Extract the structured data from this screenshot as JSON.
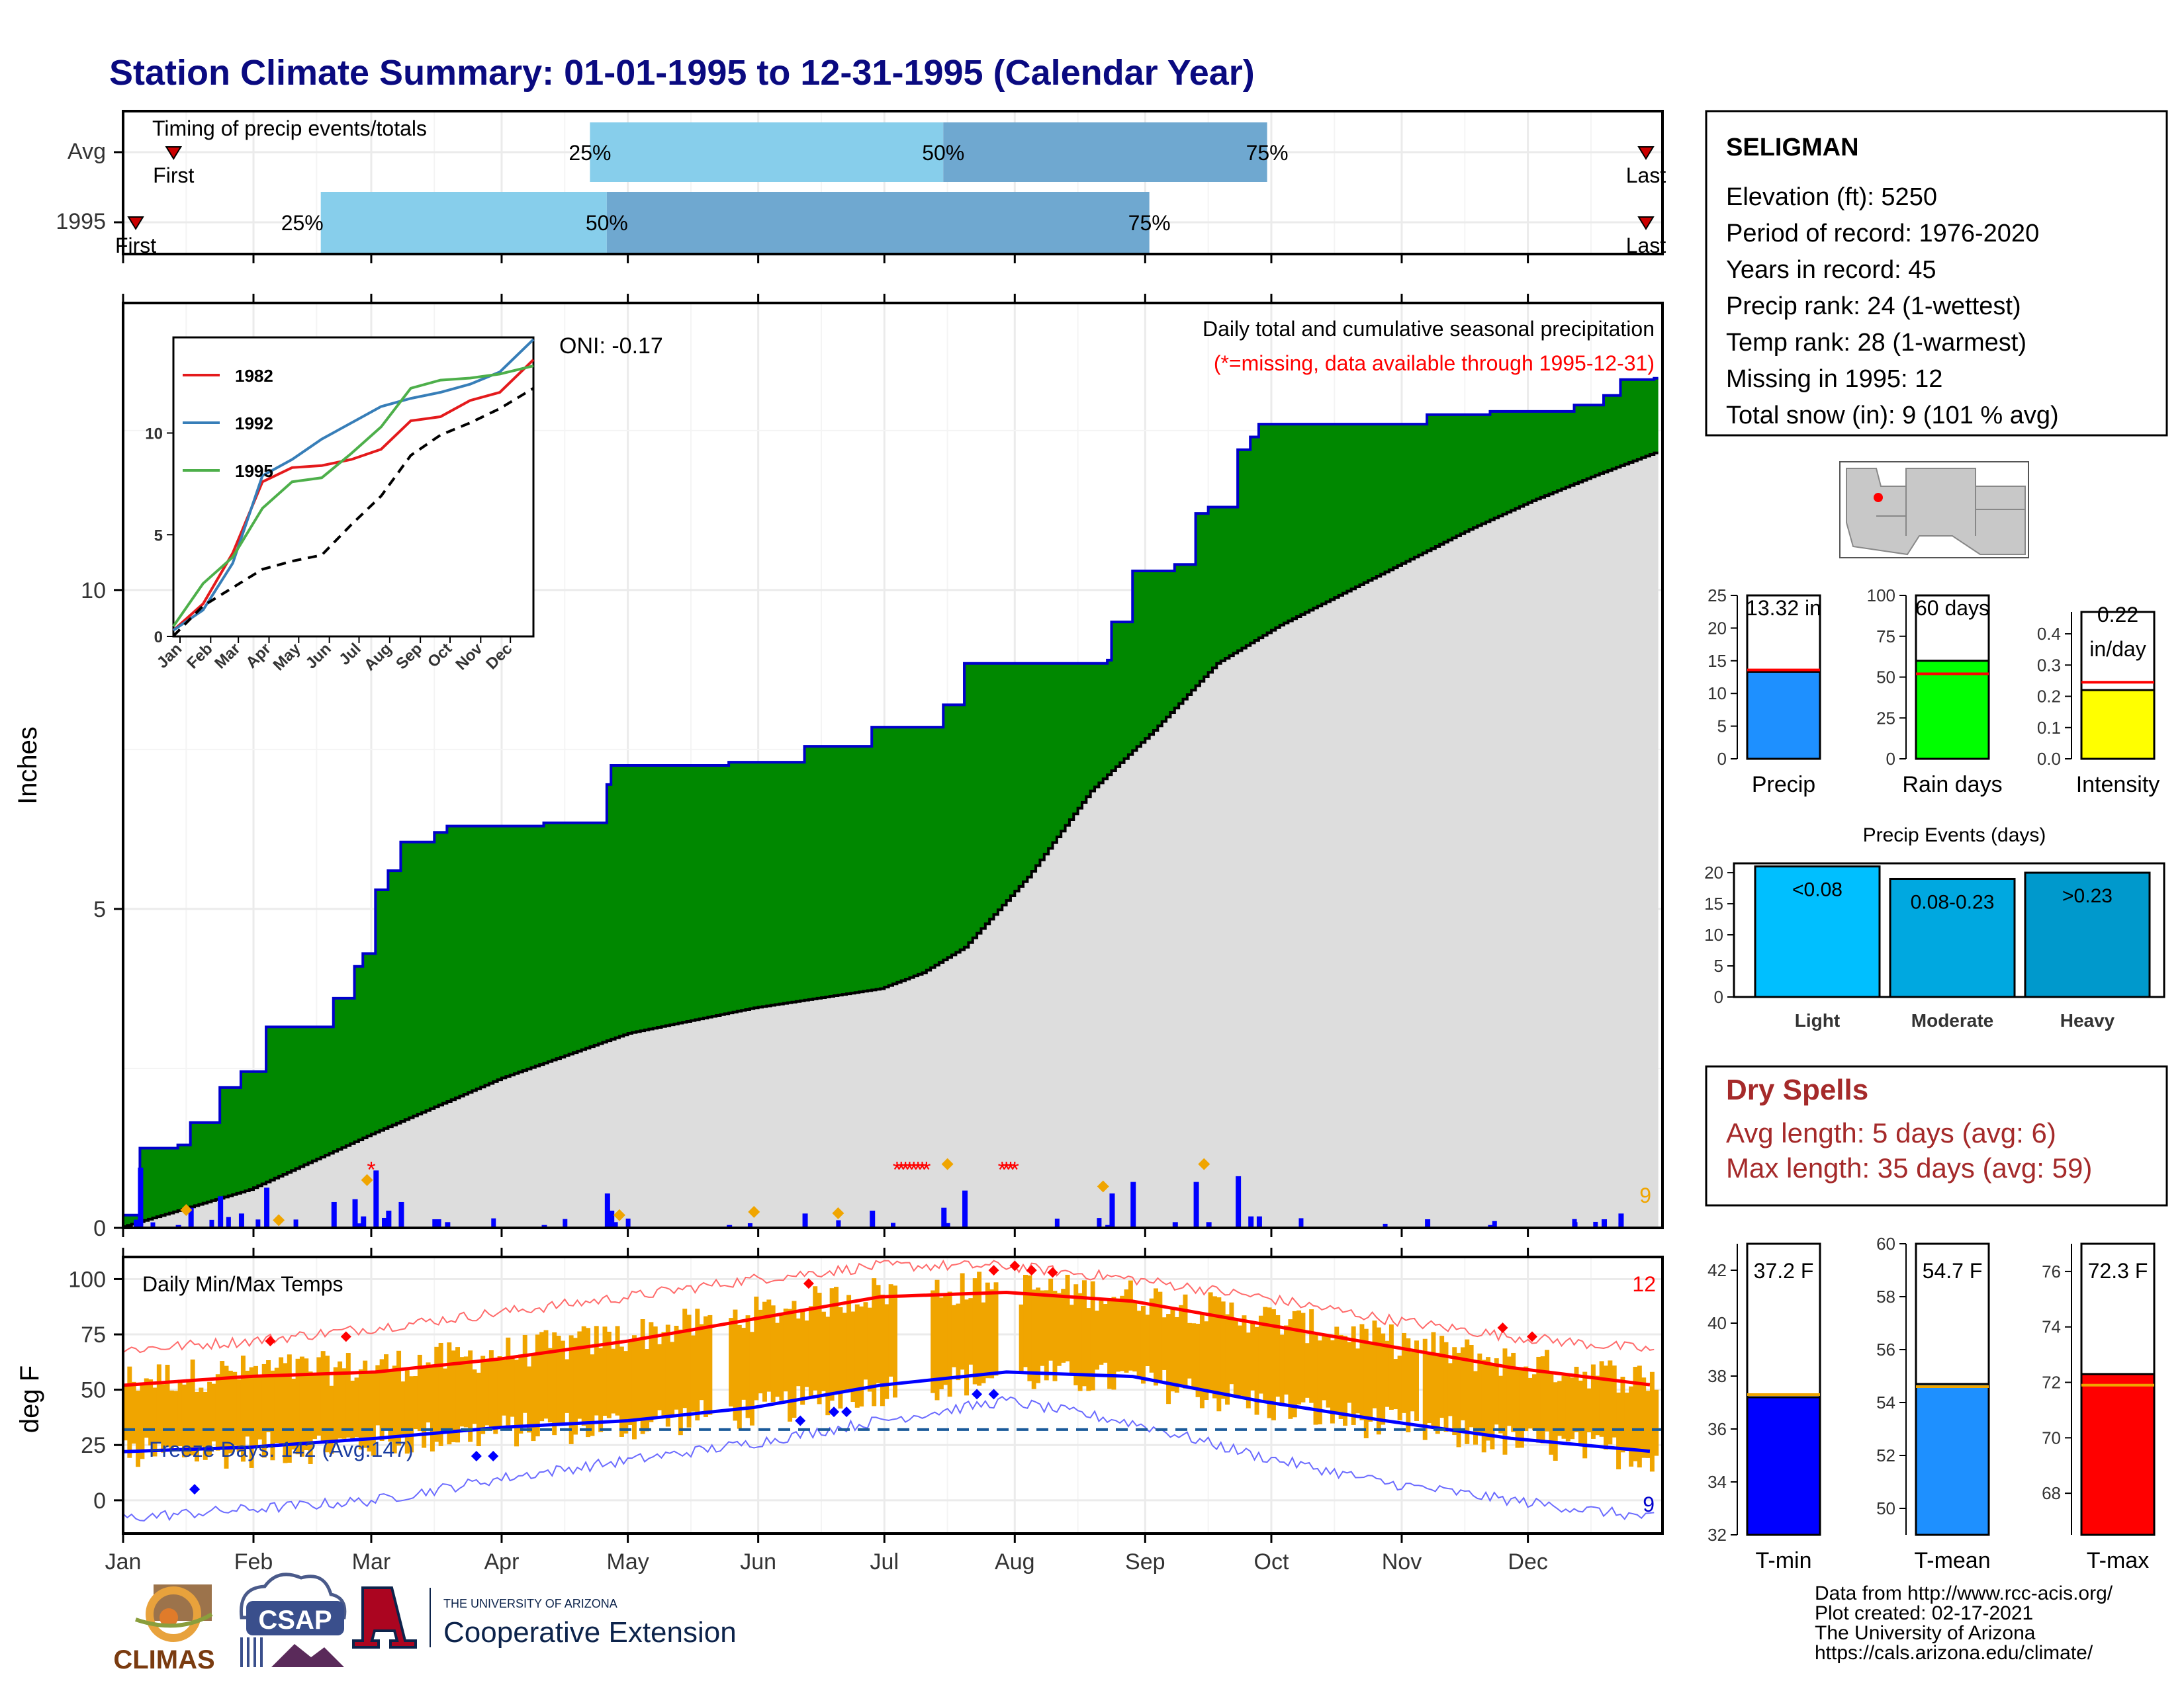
{
  "title": "Station Climate Summary: 01-01-1995 to 12-31-1995 (Calendar Year)",
  "colors": {
    "title": "#0a0a80",
    "green": "#008800",
    "avg_fill": "#dddddd",
    "bar_blue": "#0000ff",
    "orange": "#f0a500",
    "red": "#ff0000",
    "blue": "#0000ff",
    "precip_bar": "#1e90ff",
    "rain_bar": "#00ff00",
    "intensity_bar": "#ffff00",
    "light": "#00bfff",
    "moderate": "#00a8e0",
    "heavy": "#0099cc",
    "dry_spell": "#a52a2a",
    "timing_light": "#87ceeb",
    "timing_dark": "#6fa8d0"
  },
  "timing": {
    "label": "Timing of precip events/totals",
    "rows": [
      {
        "row": "Avg",
        "first": "First",
        "last": "Last",
        "first_day": 12,
        "p25_day": 111,
        "p50_day": 195,
        "p75_day": 272,
        "last_day": 365,
        "p25": "25%",
        "p50": "50%",
        "p75": "75%"
      },
      {
        "row": "1995",
        "first": "First",
        "last": "Last",
        "first_day": 3,
        "p25_day": 47,
        "p50_day": 115,
        "p75_day": 244,
        "last_day": 373,
        "p25": "25%",
        "p50": "50%",
        "p75": "75%"
      }
    ]
  },
  "months": [
    "Jan",
    "Feb",
    "Mar",
    "Apr",
    "May",
    "Jun",
    "Jul",
    "Aug",
    "Sep",
    "Oct",
    "Nov",
    "Dec"
  ],
  "precip": {
    "ylabel": "Inches",
    "yticks": [
      "0",
      "5",
      "10"
    ],
    "ylim": [
      0,
      14.5
    ],
    "oni": "ONI: -0.17",
    "header": "Daily total and cumulative seasonal precipitation",
    "missing_note": "(*=missing, data available through 1995-12-31)",
    "snow_count": "9",
    "missing_marker": "*"
  },
  "inset": {
    "yticks": [
      "0",
      "5",
      "10"
    ],
    "xticks": [
      "Jan",
      "Feb",
      "Mar",
      "Apr",
      "May",
      "Jun",
      "Jul",
      "Aug",
      "Sep",
      "Oct",
      "Nov",
      "Dec"
    ],
    "legend": [
      "1982",
      "1992",
      "1995"
    ],
    "legend_colors": [
      "#e41a1c",
      "#377eb8",
      "#4daf4a"
    ]
  },
  "temps": {
    "ylabel": "deg F",
    "title": "Daily Min/Max Temps",
    "yticks": [
      "0",
      "25",
      "50",
      "75",
      "100"
    ],
    "ylim": [
      -15,
      110
    ],
    "freeze_label": "Freeze Days: 142 (Avg:147)",
    "hot_count": "12",
    "cold_count": "9"
  },
  "station": {
    "name": "SELIGMAN",
    "lines": [
      "Elevation (ft): 5250",
      "Period of record: 1976-2020",
      "Years in record: 45",
      "Precip rank: 24 (1-wettest)",
      "Temp rank: 28 (1-warmest)",
      "Missing in 1995: 12",
      "Total snow (in): 9 (101 % avg)"
    ]
  },
  "small_bars": [
    {
      "label": "Precip",
      "value_label": "13.32 in",
      "value": 13.32,
      "avg": 13.6,
      "ylim": [
        0,
        25
      ],
      "yticks": [
        "0",
        "5",
        "10",
        "15",
        "20",
        "25"
      ]
    },
    {
      "label": "Rain days",
      "value_label": "60 days",
      "value": 60,
      "avg": 52,
      "ylim": [
        0,
        100
      ],
      "yticks": [
        "0",
        "25",
        "50",
        "75",
        "100"
      ]
    },
    {
      "label": "Intensity",
      "value_label_1": "0.22",
      "value_label_2": "in/day",
      "value": 0.22,
      "avg": 0.245,
      "ylim": [
        0,
        0.47
      ],
      "yticks": [
        "0.0",
        "0.1",
        "0.2",
        "0.3",
        "0.4"
      ]
    }
  ],
  "events": {
    "title": "Precip Events (days)",
    "yticks": [
      "0",
      "5",
      "10",
      "15",
      "20"
    ],
    "ylim": [
      0,
      21.5
    ],
    "bars": [
      {
        "label": "Light",
        "value_label": "<0.08",
        "value": 21
      },
      {
        "label": "Moderate",
        "value_label": "0.08-0.23",
        "value": 19
      },
      {
        "label": "Heavy",
        "value_label": ">0.23",
        "value": 20
      }
    ]
  },
  "dry_spells": {
    "title": "Dry Spells",
    "avg": "Avg length: 5 days (avg: 6)",
    "max": "Max length: 35 days (avg: 59)"
  },
  "temp_bars": [
    {
      "label": "T-min",
      "value_label": "37.2 F",
      "value": 37.2,
      "avg": 37.3,
      "ylim": [
        32,
        43
      ],
      "yticks": [
        "32",
        "34",
        "36",
        "38",
        "40",
        "42"
      ]
    },
    {
      "label": "T-mean",
      "value_label": "54.7 F",
      "value": 54.7,
      "avg": 54.6,
      "ylim": [
        49,
        60
      ],
      "yticks": [
        "50",
        "52",
        "54",
        "56",
        "58",
        "60"
      ]
    },
    {
      "label": "T-max",
      "value_label": "72.3 F",
      "value": 72.3,
      "avg": 71.9,
      "ylim": [
        66.5,
        77
      ],
      "yticks": [
        "68",
        "70",
        "72",
        "74",
        "76"
      ]
    }
  ],
  "footer": {
    "lines": [
      "Data from http://www.rcc-acis.org/",
      "Plot created: 02-17-2021",
      "The University of Arizona",
      "https://cals.arizona.edu/climate/"
    ],
    "climas": "CLIMAS",
    "csap": "CSAP",
    "ua_top": "THE UNIVERSITY OF ARIZONA",
    "ua_bottom": "Cooperative Extension"
  },
  "chart_data": [
    {
      "type": "area",
      "title": "Daily total and cumulative seasonal precipitation",
      "ylabel": "Inches",
      "ylim": [
        0,
        14.5
      ],
      "series": [
        {
          "name": "1995",
          "x": [
            0,
            4,
            13,
            16,
            23,
            28,
            34,
            43,
            50,
            55,
            57,
            60,
            63,
            66,
            74,
            77,
            80,
            83,
            87,
            100,
            115,
            116,
            144,
            162,
            177,
            178,
            180,
            195,
            200,
            234,
            235,
            240,
            250,
            255,
            258,
            265,
            268,
            270,
            284,
            298,
            310,
            313,
            325,
            345,
            352,
            356,
            364
          ],
          "values": [
            0.2,
            1.25,
            1.3,
            1.65,
            2.2,
            2.45,
            3.15,
            3.15,
            3.6,
            4.1,
            4.3,
            5.3,
            5.6,
            6.05,
            6.2,
            6.3,
            6.3,
            6.3,
            6.3,
            6.35,
            6.95,
            7.25,
            7.3,
            7.55,
            7.55,
            7.85,
            7.85,
            8.2,
            8.85,
            8.9,
            9.5,
            10.3,
            10.4,
            11.2,
            11.3,
            12.2,
            12.4,
            12.6,
            12.6,
            12.6,
            12.75,
            12.75,
            12.8,
            12.9,
            13.05,
            13.3,
            13.32
          ]
        },
        {
          "name": "Average",
          "x": [
            0,
            30,
            60,
            90,
            120,
            150,
            180,
            190,
            200,
            215,
            230,
            245,
            260,
            275,
            290,
            305,
            320,
            335,
            350,
            364
          ],
          "values": [
            0.02,
            0.6,
            1.5,
            2.35,
            3.05,
            3.45,
            3.75,
            4.0,
            4.4,
            5.5,
            6.85,
            7.8,
            8.85,
            9.45,
            9.95,
            10.45,
            10.95,
            11.4,
            11.8,
            12.15
          ]
        }
      ]
    },
    {
      "type": "line",
      "title": "inset cumulative precipitation",
      "ylim": [
        0,
        14.5
      ],
      "series": [
        {
          "name": "1982",
          "x": [
            0,
            30,
            60,
            90,
            120,
            150,
            180,
            210,
            240,
            270,
            300,
            330,
            364
          ],
          "values": [
            0.3,
            1.6,
            4.1,
            7.6,
            8.3,
            8.4,
            8.7,
            9.2,
            10.6,
            10.8,
            11.6,
            12.0,
            13.6
          ]
        },
        {
          "name": "1992",
          "x": [
            0,
            30,
            60,
            90,
            120,
            150,
            180,
            210,
            240,
            270,
            300,
            330,
            364
          ],
          "values": [
            0.3,
            1.3,
            3.6,
            7.9,
            8.7,
            9.7,
            10.5,
            11.3,
            11.7,
            12.0,
            12.4,
            13.0,
            14.6
          ]
        },
        {
          "name": "1995",
          "x": [
            0,
            30,
            60,
            90,
            120,
            150,
            180,
            210,
            240,
            270,
            300,
            330,
            364
          ],
          "values": [
            0.5,
            2.6,
            3.9,
            6.3,
            7.6,
            7.8,
            9.0,
            10.3,
            12.2,
            12.6,
            12.7,
            12.9,
            13.3
          ]
        },
        {
          "name": "Average",
          "x": [
            0,
            30,
            60,
            90,
            120,
            150,
            180,
            210,
            240,
            270,
            300,
            330,
            364
          ],
          "values": [
            0.02,
            1.5,
            2.4,
            3.3,
            3.7,
            4.0,
            5.5,
            6.9,
            8.9,
            9.9,
            10.5,
            11.2,
            12.2
          ]
        }
      ]
    },
    {
      "type": "line",
      "title": "Daily Min/Max Temps",
      "ylabel": "deg F",
      "ylim": [
        -15,
        110
      ],
      "series": [
        {
          "name": "Avg max",
          "x": [
            0,
            30,
            60,
            90,
            120,
            150,
            180,
            210,
            240,
            270,
            300,
            330,
            364
          ],
          "values": [
            52,
            56,
            58,
            64,
            72,
            82,
            92,
            94,
            90,
            80,
            70,
            60,
            52
          ]
        },
        {
          "name": "Avg min",
          "x": [
            0,
            30,
            60,
            90,
            120,
            150,
            180,
            210,
            240,
            270,
            300,
            330,
            364
          ],
          "values": [
            22,
            24,
            28,
            33,
            36,
            42,
            52,
            58,
            56,
            45,
            36,
            28,
            22
          ]
        },
        {
          "name": "Record high",
          "x": [
            0,
            30,
            60,
            90,
            120,
            150,
            180,
            210,
            240,
            270,
            300,
            330,
            364
          ],
          "values": [
            68,
            72,
            78,
            85,
            92,
            100,
            106,
            106,
            100,
            92,
            82,
            74,
            68
          ]
        },
        {
          "name": "Record low",
          "x": [
            0,
            30,
            60,
            90,
            120,
            150,
            180,
            210,
            240,
            270,
            300,
            330,
            364
          ],
          "values": [
            -8,
            -4,
            0,
            10,
            18,
            26,
            36,
            45,
            35,
            20,
            8,
            0,
            -8
          ]
        }
      ]
    }
  ]
}
